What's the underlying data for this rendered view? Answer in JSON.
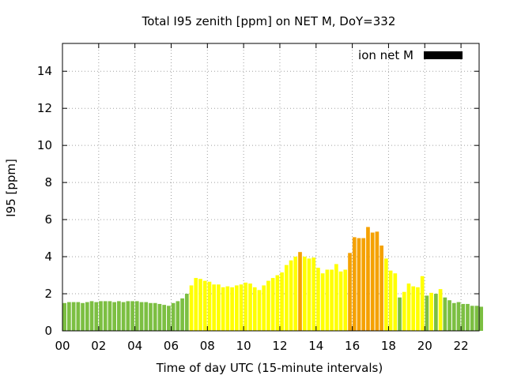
{
  "chart_data": {
    "type": "bar",
    "title": "Total I95 zenith [ppm] on NET M, DoY=332",
    "xlabel": "Time of day UTC (15-minute intervals)",
    "ylabel": "I95 [ppm]",
    "legend": {
      "label": "ion net M",
      "color": "#000000",
      "placement": "top-right"
    },
    "grid": true,
    "xlim": [
      0,
      23
    ],
    "ylim": [
      0,
      15.5
    ],
    "xticks": [
      "00",
      "02",
      "04",
      "06",
      "08",
      "10",
      "12",
      "14",
      "16",
      "18",
      "20",
      "22"
    ],
    "yticks": [
      "0",
      "2",
      "4",
      "6",
      "8",
      "10",
      "12",
      "14"
    ],
    "interval_hours": 0.25,
    "color_classes": {
      "low": "#7cbf42",
      "medium": "#ffff00",
      "high": "#f5a100"
    },
    "values": [
      1.5,
      1.55,
      1.55,
      1.55,
      1.5,
      1.55,
      1.6,
      1.55,
      1.6,
      1.6,
      1.6,
      1.55,
      1.6,
      1.55,
      1.6,
      1.6,
      1.6,
      1.55,
      1.55,
      1.5,
      1.5,
      1.45,
      1.4,
      1.35,
      1.5,
      1.6,
      1.75,
      2.0,
      2.45,
      2.85,
      2.8,
      2.7,
      2.65,
      2.5,
      2.5,
      2.35,
      2.4,
      2.35,
      2.45,
      2.5,
      2.6,
      2.55,
      2.35,
      2.2,
      2.45,
      2.7,
      2.85,
      3.0,
      3.15,
      3.55,
      3.8,
      4.0,
      4.25,
      4.0,
      3.9,
      3.95,
      3.4,
      3.1,
      3.3,
      3.3,
      3.6,
      3.2,
      3.3,
      4.2,
      5.05,
      5.0,
      5.0,
      5.6,
      5.3,
      5.35,
      4.6,
      3.9,
      3.25,
      3.1,
      1.8,
      2.1,
      2.55,
      2.4,
      2.35,
      2.95,
      1.9,
      2.05,
      2.0,
      2.25,
      1.8,
      1.65,
      1.5,
      1.55,
      1.45,
      1.45,
      1.35,
      1.35,
      1.3
    ],
    "classes": [
      "low",
      "low",
      "low",
      "low",
      "low",
      "low",
      "low",
      "low",
      "low",
      "low",
      "low",
      "low",
      "low",
      "low",
      "low",
      "low",
      "low",
      "low",
      "low",
      "low",
      "low",
      "low",
      "low",
      "low",
      "low",
      "low",
      "low",
      "low",
      "medium",
      "medium",
      "medium",
      "medium",
      "medium",
      "medium",
      "medium",
      "medium",
      "medium",
      "medium",
      "medium",
      "medium",
      "medium",
      "medium",
      "medium",
      "medium",
      "medium",
      "medium",
      "medium",
      "medium",
      "medium",
      "medium",
      "medium",
      "medium",
      "high",
      "medium",
      "medium",
      "medium",
      "medium",
      "medium",
      "medium",
      "medium",
      "medium",
      "medium",
      "medium",
      "high",
      "high",
      "high",
      "high",
      "high",
      "high",
      "high",
      "high",
      "medium",
      "medium",
      "medium",
      "low",
      "medium",
      "medium",
      "medium",
      "medium",
      "medium",
      "low",
      "medium",
      "low",
      "medium",
      "low",
      "low",
      "low",
      "low",
      "low",
      "low",
      "low",
      "low",
      "low"
    ]
  }
}
